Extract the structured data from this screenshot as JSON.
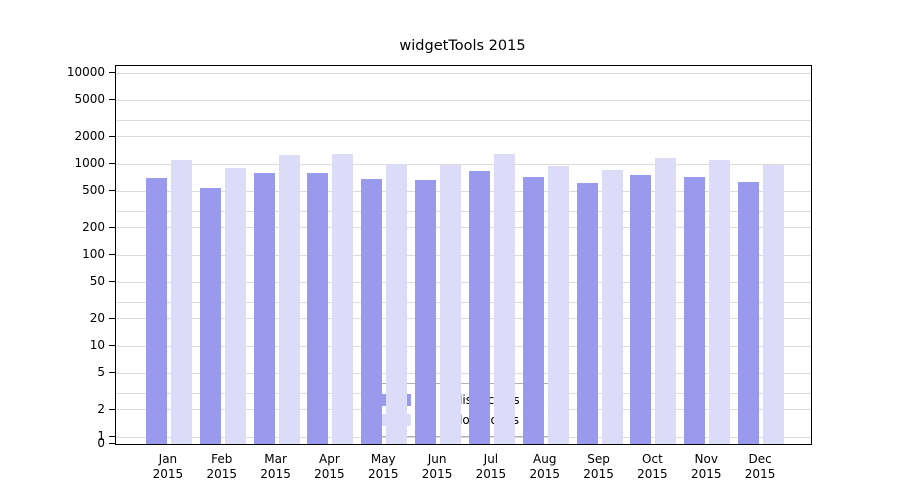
{
  "chart_data": {
    "type": "bar",
    "title": "widgetTools 2015",
    "scale": "log",
    "categories": [
      "Jan",
      "Feb",
      "Mar",
      "Apr",
      "May",
      "Jun",
      "Jul",
      "Aug",
      "Sep",
      "Oct",
      "Nov",
      "Dec"
    ],
    "year": "2015",
    "series": [
      {
        "name": "Nb of distinct IPs",
        "color": "#9999ee",
        "values": [
          700,
          540,
          800,
          800,
          690,
          670,
          840,
          720,
          620,
          760,
          720,
          640
        ]
      },
      {
        "name": "Nb of downloads",
        "color": "#dcdcf9",
        "values": [
          1100,
          900,
          1270,
          1280,
          1010,
          970,
          1300,
          940,
          850,
          1150,
          1120,
          980
        ]
      }
    ],
    "yticks": [
      0,
      1,
      2,
      5,
      10,
      20,
      50,
      100,
      200,
      500,
      1000,
      2000,
      5000,
      10000
    ],
    "gridlines": [
      1,
      2,
      3,
      5,
      10,
      20,
      30,
      50,
      100,
      200,
      300,
      500,
      1000,
      2000,
      3000,
      5000,
      10000
    ],
    "ylim": [
      0,
      10000
    ],
    "legend_position": "lower center",
    "grid": "on"
  }
}
